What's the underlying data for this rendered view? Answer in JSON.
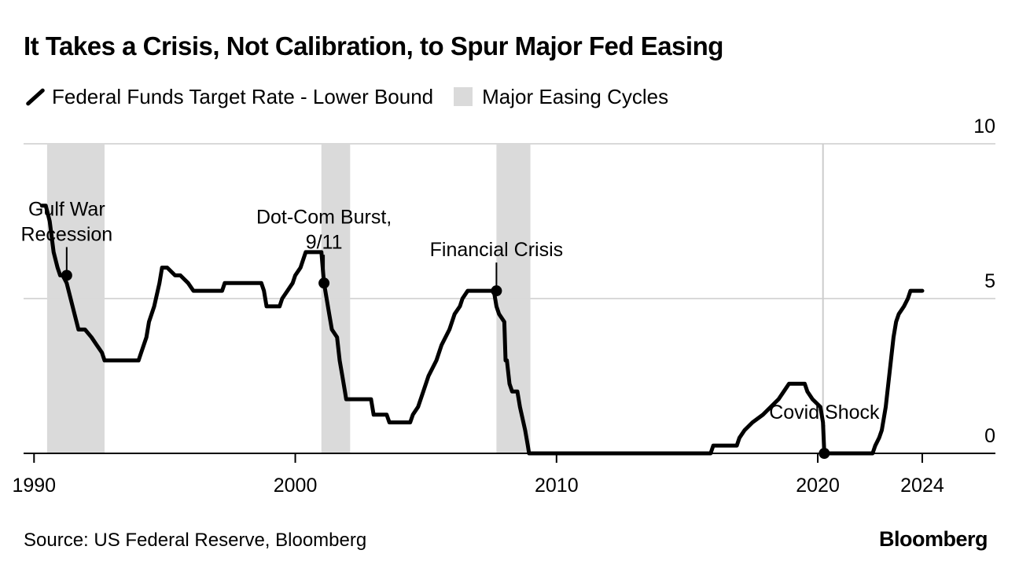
{
  "title": "It Takes a Crisis, Not Calibration, to Spur Major Fed Easing",
  "legend": {
    "line_label": "Federal Funds Target Rate - Lower Bound",
    "band_label": "Major Easing Cycles"
  },
  "source": "Source: US Federal Reserve, Bloomberg",
  "brand": "Bloomberg",
  "colors": {
    "line": "#000000",
    "band": "#dadada",
    "grid": "#d9d9d9",
    "event_line": "#cccccc"
  },
  "chart_data": {
    "type": "line",
    "title": "It Takes a Crisis, Not Calibration, to Spur Major Fed Easing",
    "xlabel": "",
    "ylabel": "",
    "xlim": [
      1989.6,
      2026.8
    ],
    "ylim": [
      0,
      10
    ],
    "x_ticks": [
      1990,
      2000,
      2010,
      2020,
      2024
    ],
    "y_ticks": [
      0,
      5,
      10
    ],
    "y_axis_side": "right",
    "grid": "horizontal",
    "legend_position": "top-left",
    "series": [
      {
        "name": "Federal Funds Target Rate - Lower Bound",
        "x": [
          1990.3,
          1990.45,
          1990.6,
          1990.75,
          1990.9,
          1991.0,
          1991.1,
          1991.25,
          1991.4,
          1991.55,
          1991.7,
          1991.8,
          1991.95,
          1992.2,
          1992.4,
          1992.6,
          1992.7,
          1993.0,
          1994.0,
          1994.1,
          1994.3,
          1994.4,
          1994.6,
          1994.8,
          1994.9,
          1995.1,
          1995.4,
          1995.6,
          1995.9,
          1996.1,
          1997.2,
          1997.3,
          1998.7,
          1998.8,
          1998.9,
          1999.4,
          1999.5,
          1999.7,
          1999.9,
          2000.0,
          2000.2,
          2000.4,
          2001.0,
          2001.05,
          2001.1,
          2001.3,
          2001.4,
          2001.6,
          2001.7,
          2001.8,
          2001.9,
          2001.95,
          2002.0,
          2002.9,
          2003.0,
          2003.5,
          2003.6,
          2004.4,
          2004.5,
          2004.7,
          2004.9,
          2005.1,
          2005.4,
          2005.6,
          2005.9,
          2006.1,
          2006.3,
          2006.4,
          2006.6,
          2007.6,
          2007.7,
          2007.8,
          2008.0,
          2008.05,
          2008.1,
          2008.2,
          2008.3,
          2008.5,
          2008.6,
          2008.8,
          2008.9,
          2008.95,
          2015.9,
          2016.0,
          2016.9,
          2017.0,
          2017.2,
          2017.5,
          2017.9,
          2018.2,
          2018.5,
          2018.7,
          2018.9,
          2019.5,
          2019.6,
          2019.8,
          2020.1,
          2020.2,
          2020.25,
          2022.1,
          2022.2,
          2022.35,
          2022.45,
          2022.6,
          2022.7,
          2022.8,
          2022.9,
          2023.0,
          2023.1,
          2023.3,
          2023.45,
          2023.55,
          2024.0
        ],
        "y": [
          8.0,
          8.0,
          7.5,
          6.5,
          6.0,
          5.75,
          5.75,
          5.5,
          5.0,
          4.5,
          4.0,
          4.0,
          4.0,
          3.75,
          3.5,
          3.25,
          3.0,
          3.0,
          3.0,
          3.25,
          3.75,
          4.25,
          4.75,
          5.5,
          6.0,
          6.0,
          5.75,
          5.75,
          5.5,
          5.25,
          5.25,
          5.5,
          5.5,
          5.25,
          4.75,
          4.75,
          5.0,
          5.25,
          5.5,
          5.75,
          6.0,
          6.5,
          6.5,
          6.0,
          5.5,
          4.5,
          4.0,
          3.75,
          3.0,
          2.5,
          2.0,
          1.75,
          1.75,
          1.75,
          1.25,
          1.25,
          1.0,
          1.0,
          1.25,
          1.5,
          2.0,
          2.5,
          3.0,
          3.5,
          4.0,
          4.5,
          4.75,
          5.0,
          5.25,
          5.25,
          4.75,
          4.5,
          4.25,
          3.0,
          3.0,
          2.25,
          2.0,
          2.0,
          1.5,
          0.75,
          0.25,
          0.0,
          0.0,
          0.25,
          0.25,
          0.5,
          0.75,
          1.0,
          1.25,
          1.5,
          1.75,
          2.0,
          2.25,
          2.25,
          2.0,
          1.75,
          1.5,
          1.0,
          0.0,
          0.0,
          0.25,
          0.5,
          0.75,
          1.5,
          2.25,
          3.0,
          3.75,
          4.25,
          4.5,
          4.75,
          5.0,
          5.25,
          5.25
        ]
      }
    ],
    "bands": [
      {
        "name": "Major Easing Cycles",
        "from": 1990.5,
        "to": 1992.7
      },
      {
        "name": "Major Easing Cycles",
        "from": 2001.0,
        "to": 2002.1
      },
      {
        "name": "Major Easing Cycles",
        "from": 2007.7,
        "to": 2009.0
      }
    ],
    "event_lines": [
      {
        "x": 2020.2
      }
    ],
    "annotations": [
      {
        "label": "Gulf War\nRecession",
        "x": 1991.25,
        "y": 5.75
      },
      {
        "label": "Dot-Com Burst,\n9/11",
        "x": 2001.1,
        "y": 5.5
      },
      {
        "label": "Financial Crisis",
        "x": 2007.7,
        "y": 5.25
      },
      {
        "label": "Covid Shock",
        "x": 2020.25,
        "y": 0.0
      }
    ]
  }
}
